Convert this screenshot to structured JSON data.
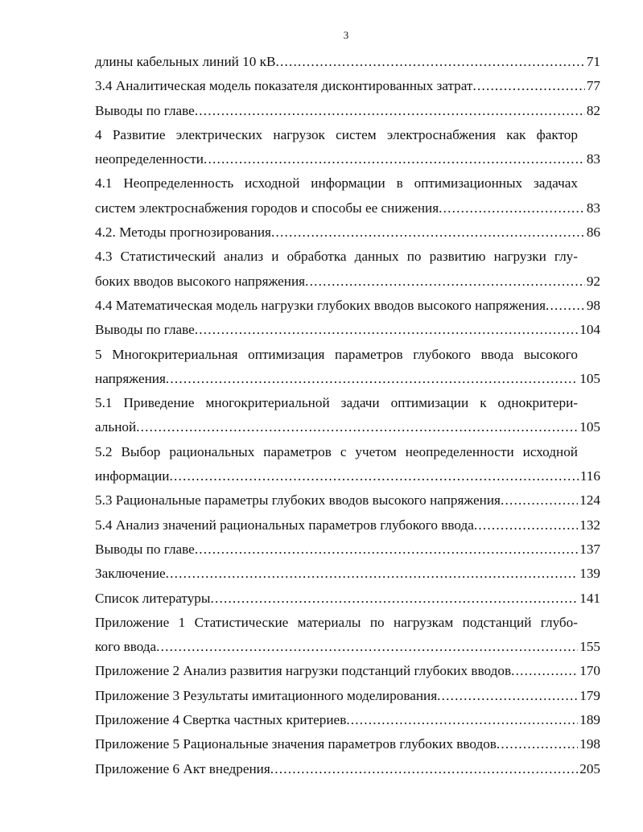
{
  "page_number": "3",
  "entries": [
    {
      "head": null,
      "tail": "длины кабельных линий 10 кВ",
      "page": "71"
    },
    {
      "head": null,
      "tail": "3.4 Аналитическая модель показателя дисконтированных затрат",
      "page": "77"
    },
    {
      "head": null,
      "tail": "Выводы по главе",
      "page": "82"
    },
    {
      "head": "4 Развитие электрических нагрузок систем электроснабжения как фактор",
      "tail": "неопределенности",
      "page": "83"
    },
    {
      "head": "4.1 Неопределенность исходной информации в оптимизационных задачах",
      "tail": "систем электроснабжения городов и способы ее снижения",
      "page": "83"
    },
    {
      "head": null,
      "tail": "4.2. Методы прогнозирования",
      "page": "86"
    },
    {
      "head": "4.3 Статистический анализ и обработка данных по развитию нагрузки глу-",
      "tail": "боких вводов высокого напряжения",
      "page": "92"
    },
    {
      "head": null,
      "tail": "4.4 Математическая модель нагрузки глубоких вводов высокого напряжения",
      "page": "98"
    },
    {
      "head": null,
      "tail": "Выводы по главе",
      "page": "104"
    },
    {
      "head": "5 Многокритериальная оптимизация параметров глубокого ввода высокого",
      "tail": "напряжения",
      "page": "105"
    },
    {
      "head": "5.1 Приведение многокритериальной задачи оптимизации к однокритери-",
      "tail": "альной",
      "page": "105"
    },
    {
      "head": "5.2 Выбор рациональных параметров с учетом неопределенности исходной",
      "tail": "информации",
      "page": "116"
    },
    {
      "head": null,
      "tail": "5.3 Рациональные параметры глубоких вводов высокого напряжения",
      "page": "124"
    },
    {
      "head": null,
      "tail": "5.4 Анализ значений рациональных параметров глубокого ввода",
      "page": "132"
    },
    {
      "head": null,
      "tail": "Выводы по главе",
      "page": "137"
    },
    {
      "head": null,
      "tail": "Заключение",
      "page": "139"
    },
    {
      "head": null,
      "tail": "Список литературы",
      "page": "141"
    },
    {
      "head": "Приложение 1 Статистические материалы по нагрузкам подстанций глубо-",
      "tail": "кого ввода",
      "page": "155"
    },
    {
      "head": null,
      "tail": "Приложение 2 Анализ развития нагрузки подстанций глубоких вводов",
      "page": "170"
    },
    {
      "head": null,
      "tail": "Приложение 3 Результаты имитационного моделирования",
      "page": "179"
    },
    {
      "head": null,
      "tail": "Приложение 4 Свертка частных критериев",
      "page": "189"
    },
    {
      "head": null,
      "tail": "Приложение 5 Рациональные значения параметров глубоких вводов",
      "page": "198"
    },
    {
      "head": null,
      "tail": "Приложение 6 Акт внедрения",
      "page": "205"
    }
  ]
}
